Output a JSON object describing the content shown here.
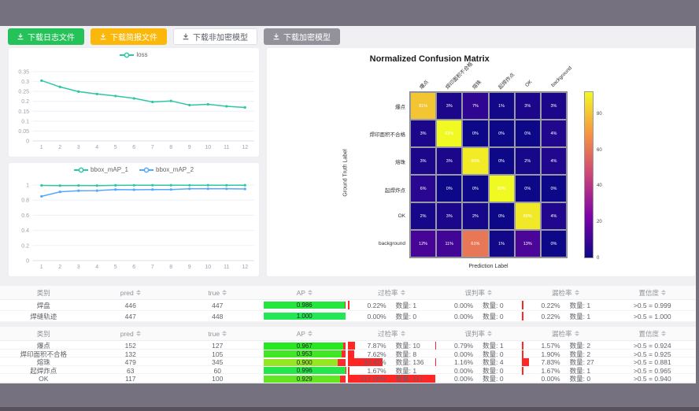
{
  "toolbar": {
    "buttons": [
      {
        "name": "download-log-button",
        "label": "下载日志文件",
        "variant": "green"
      },
      {
        "name": "download-report-button",
        "label": "下载简报文件",
        "variant": "orange"
      },
      {
        "name": "download-plain-model-button",
        "label": "下载非加密模型",
        "variant": "white"
      },
      {
        "name": "download-encrypted-model-button",
        "label": "下载加密模型",
        "variant": "gray"
      }
    ]
  },
  "chart_data": [
    {
      "id": "loss",
      "type": "line",
      "x": [
        "1",
        "2",
        "3",
        "4",
        "5",
        "6",
        "7",
        "8",
        "9",
        "10",
        "11",
        "12"
      ],
      "series": [
        {
          "name": "loss",
          "color": "#2ec7a5",
          "values": [
            0.305,
            0.273,
            0.249,
            0.237,
            0.227,
            0.215,
            0.197,
            0.202,
            0.181,
            0.185,
            0.175,
            0.169
          ]
        }
      ],
      "ylim": [
        0,
        0.35
      ],
      "yticks": [
        0,
        0.05,
        0.1,
        0.15,
        0.2,
        0.25,
        0.3,
        0.35
      ],
      "legend_position": "top-center",
      "grid": true
    },
    {
      "id": "bbox_map",
      "type": "line",
      "x": [
        "1",
        "2",
        "3",
        "4",
        "5",
        "6",
        "7",
        "8",
        "9",
        "10",
        "11",
        "12"
      ],
      "series": [
        {
          "name": "bbox_mAP_1",
          "color": "#2ec7a5",
          "values": [
            0.995,
            0.992,
            0.994,
            0.992,
            0.996,
            0.997,
            0.997,
            0.998,
            0.997,
            0.998,
            0.997,
            0.998
          ]
        },
        {
          "name": "bbox_mAP_2",
          "color": "#54a8ff",
          "values": [
            0.85,
            0.91,
            0.925,
            0.926,
            0.94,
            0.938,
            0.94,
            0.941,
            0.95,
            0.951,
            0.95,
            0.948
          ]
        }
      ],
      "ylim": [
        0,
        1
      ],
      "yticks": [
        0,
        0.2,
        0.4,
        0.6,
        0.8,
        1
      ],
      "legend_position": "top-center",
      "grid": true
    },
    {
      "id": "confusion_matrix",
      "type": "heatmap",
      "title": "Normalized Confusion Matrix",
      "xlabel": "Prediction Label",
      "ylabel": "Ground Truth Label",
      "categories": [
        "爆点",
        "焊印面积不合格",
        "熔珠",
        "起焊炸点",
        "OK",
        "background"
      ],
      "values": [
        [
          81,
          3,
          7,
          1,
          3,
          3
        ],
        [
          3,
          93,
          0,
          0,
          0,
          4
        ],
        [
          3,
          3,
          90,
          0,
          2,
          4
        ],
        [
          6,
          0,
          0,
          93,
          0,
          0
        ],
        [
          2,
          3,
          2,
          0,
          89,
          4
        ],
        [
          12,
          11,
          61,
          1,
          13,
          0
        ]
      ],
      "unit": "%",
      "vmin": 0,
      "vmax": 93,
      "colormap": "plasma",
      "colorbar_ticks": [
        0,
        20,
        40,
        60,
        80
      ]
    }
  ],
  "tables": {
    "qty_label": "数量:",
    "headers": [
      {
        "label": "类别",
        "sortable": false
      },
      {
        "label": "pred",
        "sortable": true
      },
      {
        "label": "true",
        "sortable": true
      },
      {
        "label": "AP",
        "sortable": true
      },
      {
        "label": "过检率",
        "sortable": true
      },
      {
        "label": "误判率",
        "sortable": true
      },
      {
        "label": "漏检率",
        "sortable": true
      },
      {
        "label": "置信度",
        "sortable": true
      }
    ],
    "groups": [
      {
        "rows": [
          {
            "label": "焊盘",
            "pred": 446,
            "true": 447,
            "ap": 0.986,
            "over": {
              "text": "0.22%",
              "count": 1
            },
            "mis": {
              "text": "0.00%",
              "count": 0
            },
            "miss": {
              "text": "0.22%",
              "count": 1
            },
            "conf": ">0.5 = 0.999"
          },
          {
            "label": "焊缝轨迹",
            "pred": 447,
            "true": 448,
            "ap": 1.0,
            "over": {
              "text": "0.00%",
              "count": 0
            },
            "mis": {
              "text": "0.00%",
              "count": 0
            },
            "miss": {
              "text": "0.22%",
              "count": 1
            },
            "conf": ">0.5 = 1.000"
          }
        ]
      },
      {
        "rows": [
          {
            "label": "爆点",
            "pred": 152,
            "true": 127,
            "ap": 0.967,
            "over": {
              "text": "7.87%",
              "count": 10
            },
            "mis": {
              "text": "0.79%",
              "count": 1
            },
            "miss": {
              "text": "1.57%",
              "count": 2
            },
            "conf": ">0.5 = 0.924"
          },
          {
            "label": "焊印面积不合格",
            "pred": 132,
            "true": 105,
            "ap": 0.953,
            "over": {
              "text": "7.62%",
              "count": 8
            },
            "mis": {
              "text": "0.00%",
              "count": 0
            },
            "miss": {
              "text": "1.90%",
              "count": 2
            },
            "conf": ">0.5 = 0.925"
          },
          {
            "label": "熔珠",
            "pred": 479,
            "true": 345,
            "ap": 0.9,
            "over": {
              "text": "39.42%",
              "count": 136
            },
            "mis": {
              "text": "1.16%",
              "count": 4
            },
            "miss": {
              "text": "7.83%",
              "count": 27
            },
            "conf": ">0.5 = 0.881"
          },
          {
            "label": "起焊炸点",
            "pred": 63,
            "true": 60,
            "ap": 0.996,
            "over": {
              "text": "1.67%",
              "count": 1
            },
            "mis": {
              "text": "0.00%",
              "count": 0
            },
            "miss": {
              "text": "1.67%",
              "count": 1
            },
            "conf": ">0.5 = 0.965"
          },
          {
            "label": "OK",
            "pred": 117,
            "true": 100,
            "ap": 0.929,
            "over": {
              "text": "117.00%",
              "count": 117
            },
            "mis": {
              "text": "0.00%",
              "count": 0
            },
            "miss": {
              "text": "0.00%",
              "count": 0
            },
            "conf": ">0.5 = 0.940"
          }
        ]
      }
    ]
  }
}
